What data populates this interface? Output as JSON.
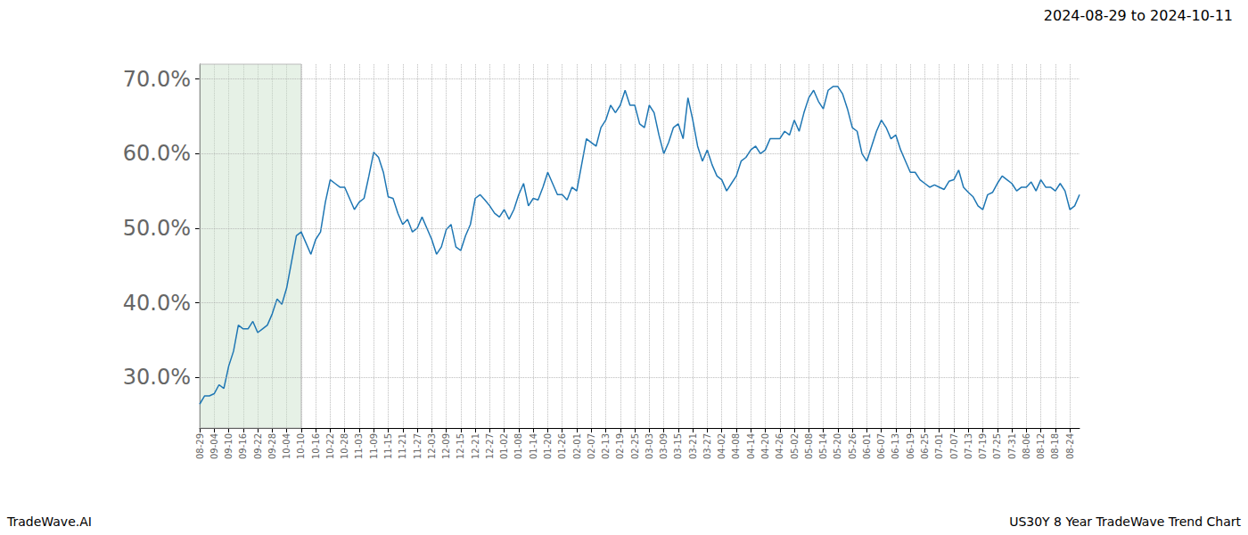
{
  "chart_data": {
    "type": "line",
    "title": "2024-08-29 to 2024-10-11",
    "annotations": [
      {
        "text": "TradeWave.AI"
      },
      {
        "text": "US30Y 8 Year TradeWave Trend Chart"
      }
    ],
    "shaded_range": {
      "start": "08-29",
      "end": "10-10"
    },
    "color": "#1f77b4",
    "grid": true,
    "categories": [
      "08-29",
      null,
      null,
      "09-04",
      null,
      null,
      "09-10",
      null,
      null,
      "09-16",
      null,
      null,
      "09-22",
      null,
      null,
      "09-28",
      null,
      null,
      "10-04",
      null,
      null,
      "10-10",
      null,
      null,
      "10-16",
      null,
      null,
      "10-22",
      null,
      null,
      "10-28",
      null,
      null,
      "11-03",
      null,
      null,
      "11-09",
      null,
      null,
      "11-15",
      null,
      null,
      "11-21",
      null,
      null,
      "11-27",
      null,
      null,
      "12-03",
      null,
      null,
      "12-09",
      null,
      null,
      "12-15",
      null,
      null,
      "12-21",
      null,
      null,
      "12-27",
      null,
      null,
      "01-02",
      null,
      null,
      "01-08",
      null,
      null,
      "01-14",
      null,
      null,
      "01-20",
      null,
      null,
      "01-26",
      null,
      null,
      "02-01",
      null,
      null,
      "02-07",
      null,
      null,
      "02-13",
      null,
      null,
      "02-19",
      null,
      null,
      "02-25",
      null,
      null,
      "03-03",
      null,
      null,
      "03-09",
      null,
      null,
      "03-15",
      null,
      null,
      "03-21",
      null,
      null,
      "03-27",
      null,
      null,
      "04-02",
      null,
      null,
      "04-08",
      null,
      null,
      "04-14",
      null,
      null,
      "04-20",
      null,
      null,
      "04-26",
      null,
      null,
      "05-02",
      null,
      null,
      "05-08",
      null,
      null,
      "05-14",
      null,
      null,
      "05-20",
      null,
      null,
      "05-26",
      null,
      null,
      "06-01",
      null,
      null,
      "06-07",
      null,
      null,
      "06-13",
      null,
      null,
      "06-19",
      null,
      null,
      "06-25",
      null,
      null,
      "07-01",
      null,
      null,
      "07-07",
      null,
      null,
      "07-13",
      null,
      null,
      "07-19",
      null,
      null,
      "07-25",
      null,
      null,
      "07-31",
      null,
      null,
      "08-06",
      null,
      null,
      "08-12",
      null,
      null,
      "08-18",
      null,
      null,
      "08-24",
      null,
      null
    ],
    "values": [
      26.4,
      27.5,
      27.5,
      27.8,
      29,
      28.5,
      31.5,
      33.5,
      37,
      36.5,
      36.5,
      37.5,
      36,
      36.5,
      37,
      38.5,
      40.5,
      39.8,
      42,
      45.5,
      49,
      49.5,
      48,
      46.5,
      48.5,
      49.5,
      53.5,
      56.5,
      56,
      55.5,
      55.5,
      54,
      52.5,
      53.5,
      54,
      57,
      60.2,
      59.5,
      57.5,
      54.2,
      54,
      52,
      50.5,
      51.2,
      49.5,
      50,
      51.5,
      50,
      48.5,
      46.5,
      47.5,
      49.8,
      50.5,
      47.5,
      47,
      49,
      50.5,
      54,
      54.5,
      53.8,
      53,
      52,
      51.5,
      52.5,
      51.2,
      52.5,
      54.5,
      56,
      53,
      54,
      53.8,
      55.5,
      57.5,
      56,
      54.5,
      54.5,
      53.8,
      55.5,
      55,
      58.5,
      62,
      61.5,
      61,
      63.5,
      64.5,
      66.5,
      65.5,
      66.5,
      68.5,
      66.5,
      66.5,
      64,
      63.5,
      66.5,
      65.5,
      62.5,
      60,
      61.5,
      63.5,
      64,
      62,
      67.5,
      64.5,
      61,
      59,
      60.5,
      58.5,
      57,
      56.5,
      55,
      56,
      57,
      59,
      59.5,
      60.5,
      61,
      60,
      60.5,
      62,
      62,
      62,
      63,
      62.5,
      64.5,
      63,
      65.5,
      67.5,
      68.5,
      67,
      66,
      68.5,
      69,
      69,
      68,
      66,
      63.5,
      63,
      60,
      59,
      61,
      63,
      64.5,
      63.5,
      62,
      62.5,
      60.5,
      59,
      57.5,
      57.5,
      56.5,
      56,
      55.5,
      55.8,
      55.5,
      55.2,
      56.3,
      56.5,
      57.8,
      55.5,
      54.8,
      54.2,
      53,
      52.5,
      54.5,
      54.8,
      56,
      57,
      56.5,
      56,
      55,
      55.5,
      55.5,
      56.2,
      55,
      56.5,
      55.5,
      55.5,
      55,
      56,
      55,
      52.5,
      53,
      54.5
    ],
    "ylim": [
      23.2,
      72.0
    ],
    "yticks": [
      {
        "value": 30,
        "label": "30.0%"
      },
      {
        "value": 40,
        "label": "40.0%"
      },
      {
        "value": 50,
        "label": "50.0%"
      },
      {
        "value": 60,
        "label": "60.0%"
      },
      {
        "value": 70,
        "label": "70.0%"
      }
    ]
  }
}
